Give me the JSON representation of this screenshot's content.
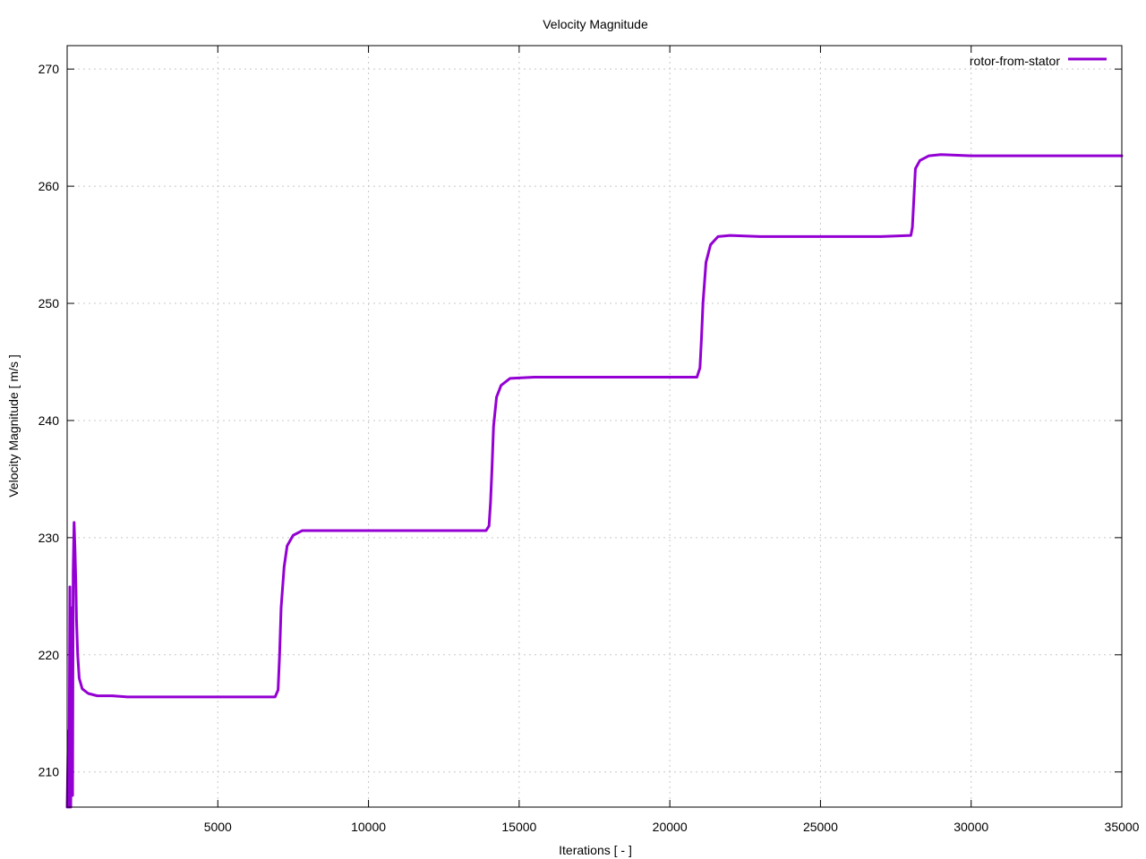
{
  "chart_data": {
    "type": "line",
    "title": "Velocity Magnitude",
    "xlabel": "Iterations [ - ]",
    "ylabel": "Velocity Magnitude [ m/s ]",
    "xlim": [
      0,
      35000
    ],
    "ylim": [
      207,
      272
    ],
    "xticks": [
      5000,
      10000,
      15000,
      20000,
      25000,
      30000,
      35000
    ],
    "yticks": [
      210,
      220,
      230,
      240,
      250,
      260,
      270
    ],
    "grid": true,
    "legend_position": "top-right",
    "series": [
      {
        "name": "rotor-from-stator",
        "color": "#9400d3",
        "points": [
          [
            0,
            207
          ],
          [
            40,
            213.5
          ],
          [
            60,
            207
          ],
          [
            90,
            225.8
          ],
          [
            120,
            207
          ],
          [
            150,
            224
          ],
          [
            180,
            208
          ],
          [
            200,
            227
          ],
          [
            230,
            231.3
          ],
          [
            260,
            229
          ],
          [
            290,
            226
          ],
          [
            310,
            223
          ],
          [
            350,
            220
          ],
          [
            400,
            218
          ],
          [
            500,
            217.1
          ],
          [
            700,
            216.7
          ],
          [
            1000,
            216.5
          ],
          [
            1500,
            216.5
          ],
          [
            2000,
            216.4
          ],
          [
            3000,
            216.4
          ],
          [
            5000,
            216.4
          ],
          [
            6900,
            216.4
          ],
          [
            7000,
            217
          ],
          [
            7050,
            220
          ],
          [
            7100,
            224
          ],
          [
            7200,
            227.5
          ],
          [
            7300,
            229.3
          ],
          [
            7500,
            230.2
          ],
          [
            7800,
            230.6
          ],
          [
            8500,
            230.6
          ],
          [
            10000,
            230.6
          ],
          [
            12000,
            230.6
          ],
          [
            13900,
            230.6
          ],
          [
            14000,
            231
          ],
          [
            14050,
            233
          ],
          [
            14100,
            236
          ],
          [
            14150,
            239.5
          ],
          [
            14250,
            242
          ],
          [
            14400,
            243
          ],
          [
            14700,
            243.6
          ],
          [
            15500,
            243.7
          ],
          [
            17000,
            243.7
          ],
          [
            19000,
            243.7
          ],
          [
            20900,
            243.7
          ],
          [
            21000,
            244.5
          ],
          [
            21050,
            247
          ],
          [
            21100,
            250
          ],
          [
            21200,
            253.5
          ],
          [
            21350,
            255
          ],
          [
            21600,
            255.7
          ],
          [
            22000,
            255.8
          ],
          [
            23000,
            255.7
          ],
          [
            25000,
            255.7
          ],
          [
            27000,
            255.7
          ],
          [
            28000,
            255.8
          ],
          [
            28050,
            256.5
          ],
          [
            28100,
            259
          ],
          [
            28150,
            261.5
          ],
          [
            28300,
            262.2
          ],
          [
            28600,
            262.6
          ],
          [
            29000,
            262.7
          ],
          [
            30000,
            262.6
          ],
          [
            32000,
            262.6
          ],
          [
            35000,
            262.6
          ]
        ]
      }
    ]
  }
}
